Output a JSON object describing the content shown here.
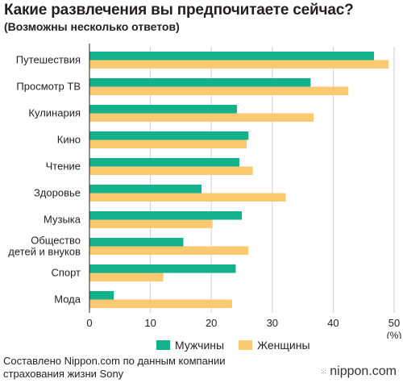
{
  "chart_data": {
    "type": "bar",
    "orientation": "horizontal",
    "title": "Какие развлечения вы предпочитаете сейчас?",
    "subtitle": "(Возможны несколько ответов)",
    "categories": [
      [
        "Путешествия"
      ],
      [
        "Просмотр ТВ"
      ],
      [
        "Кулинария"
      ],
      [
        "Кино"
      ],
      [
        "Чтение"
      ],
      [
        "Здоровье"
      ],
      [
        "Музыка"
      ],
      [
        "Общество",
        "детей и внуков"
      ],
      [
        "Спорт"
      ],
      [
        "Мода"
      ]
    ],
    "series": [
      {
        "name": "Мужчины",
        "color": "#13b18c",
        "values": [
          46.7,
          36.3,
          24.2,
          26.1,
          24.6,
          18.4,
          25.0,
          15.4,
          24.0,
          4.0
        ]
      },
      {
        "name": "Женщины",
        "color": "#fbc970",
        "values": [
          49.1,
          42.5,
          36.8,
          25.8,
          26.8,
          32.2,
          20.2,
          26.1,
          12.1,
          23.4
        ]
      }
    ],
    "xlim": [
      0,
      50
    ],
    "xticks": [
      "0",
      "10",
      "20",
      "30",
      "40",
      "50"
    ],
    "xunit": "(%)",
    "grid": true,
    "legend_position": "bottom"
  },
  "source_lines": [
    "Составлено Nippon.com по данным компании",
    "страхования жизни Sony"
  ],
  "brand": "nippon.com",
  "brand_icon": "dots-logo-icon"
}
